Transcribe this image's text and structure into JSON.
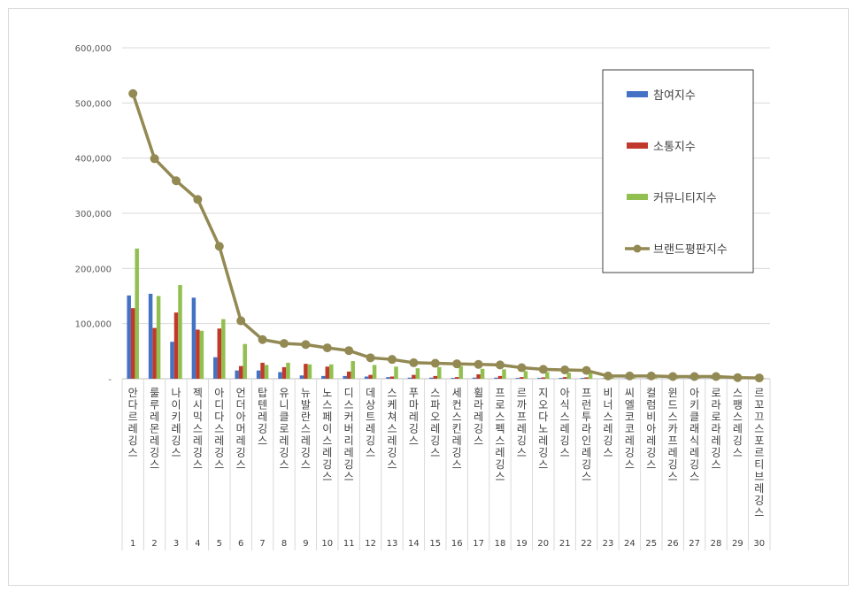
{
  "chart_data": {
    "type": "bar",
    "ylim": [
      0,
      600000
    ],
    "yticks": [
      "-",
      "100,000",
      "200,000",
      "300,000",
      "400,000",
      "500,000",
      "600,000"
    ],
    "grid": true,
    "legend_position": "top-right",
    "ranks": [
      "1",
      "2",
      "3",
      "4",
      "5",
      "6",
      "7",
      "8",
      "9",
      "10",
      "11",
      "12",
      "13",
      "14",
      "15",
      "16",
      "17",
      "18",
      "19",
      "20",
      "21",
      "22",
      "23",
      "24",
      "25",
      "26",
      "27",
      "28",
      "29",
      "30"
    ],
    "categories": [
      "안다르레깅스",
      "룰루레몬레깅스",
      "나이키레깅스",
      "젝시믹스레깅스",
      "아디다스레깅스",
      "언더아머레깅스",
      "탑텐레깅스",
      "유니클로레깅스",
      "뉴발란스레깅스",
      "노스페이스레깅스",
      "디스커버리레깅스",
      "데상트레깅스",
      "스케쳐스레깅스",
      "푸마레깅스",
      "스파오레깅스",
      "세컨스킨레깅스",
      "휠라레깅스",
      "프로스펙스레깅스",
      "르까프레깅스",
      "지오다노레깅스",
      "아식스레깅스",
      "프런투라인레깅스",
      "비너스레깅스",
      "씨엘코코레깅스",
      "컬럼비아레깅스",
      "윈드스카프레깅스",
      "아키클래식레깅스",
      "로라로라레깅스",
      "스팽스레깅스",
      "르꼬끄스포르티브레깅스"
    ],
    "series": [
      {
        "name": "참여지수",
        "color": "#4472c4",
        "values": [
          151000,
          154000,
          67000,
          147000,
          39000,
          15000,
          15000,
          12000,
          6000,
          5000,
          5000,
          4000,
          3000,
          2000,
          2000,
          1500,
          2000,
          2000,
          1500,
          1500,
          1500,
          1500,
          800,
          800,
          800,
          800,
          800,
          800,
          500,
          500
        ]
      },
      {
        "name": "소통지수",
        "color": "#c0392b",
        "values": [
          128000,
          92000,
          120000,
          89000,
          91000,
          23000,
          29000,
          21000,
          27000,
          22000,
          13000,
          7000,
          4000,
          7000,
          5000,
          3000,
          8000,
          5000,
          3000,
          2500,
          3000,
          2500,
          800,
          800,
          800,
          800,
          800,
          800,
          500,
          500
        ]
      },
      {
        "name": "커뮤니티지수",
        "color": "#92c050",
        "values": [
          236000,
          150000,
          170000,
          87000,
          108000,
          63000,
          25000,
          29000,
          26000,
          26000,
          32000,
          25000,
          22000,
          19000,
          21000,
          23000,
          18000,
          17000,
          14000,
          12000,
          11000,
          11000,
          2000,
          2000,
          2000,
          2000,
          2000,
          2000,
          1000,
          1000
        ]
      },
      {
        "name": "브랜드평판지수",
        "color": "#938953",
        "values": [
          517000,
          399000,
          359000,
          325000,
          240000,
          105000,
          71000,
          64000,
          62000,
          56000,
          51000,
          38000,
          35000,
          29000,
          28000,
          27000,
          26000,
          25000,
          20000,
          17000,
          16000,
          15000,
          5000,
          5000,
          5000,
          4000,
          4000,
          4000,
          2000,
          1500
        ]
      }
    ]
  }
}
